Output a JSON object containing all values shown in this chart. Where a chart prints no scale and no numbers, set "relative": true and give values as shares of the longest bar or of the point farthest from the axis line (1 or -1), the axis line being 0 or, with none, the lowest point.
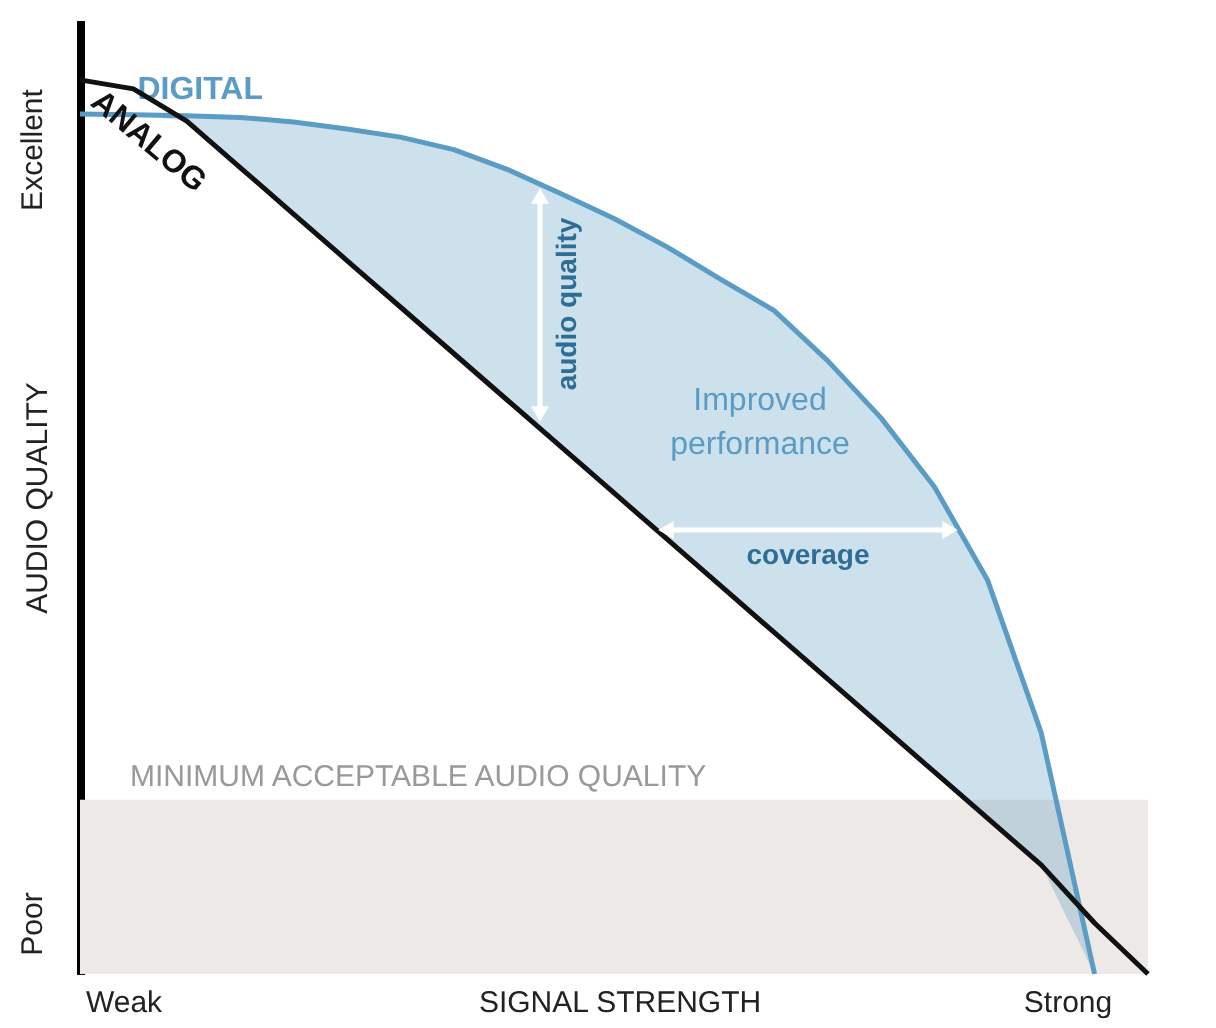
{
  "chart_data": {
    "type": "line",
    "relative": true,
    "xlabel": "SIGNAL STRENGTH",
    "ylabel": "AUDIO QUALITY",
    "categories": [
      null,
      null,
      null,
      null,
      null,
      null,
      null,
      null,
      null,
      null,
      null,
      null,
      null,
      null,
      null,
      null,
      null,
      null,
      null,
      null,
      null
    ],
    "series": [
      {
        "name": "DIGITAL",
        "color": "#5b9cc4",
        "values": [
          0.962,
          0.961,
          0.96,
          0.958,
          0.953,
          0.945,
          0.936,
          0.922,
          0.9,
          0.873,
          0.845,
          0.813,
          0.777,
          0.742,
          0.686,
          0.622,
          0.545,
          0.44,
          0.27,
          0,
          null
        ],
        "lower": [
          0.962,
          0.961,
          0.954,
          0.902,
          0.85,
          0.798,
          0.746,
          0.694,
          0.642,
          0.59,
          0.538,
          0.486,
          0.434,
          0.382,
          0.33,
          0.278,
          0.226,
          0.174,
          0.122,
          0,
          null
        ],
        "upper": [
          0.962,
          0.961,
          0.96,
          0.958,
          0.953,
          0.945,
          0.936,
          0.922,
          0.9,
          0.873,
          0.845,
          0.813,
          0.777,
          0.742,
          0.686,
          0.622,
          0.545,
          0.44,
          0.27,
          0,
          null
        ]
      },
      {
        "name": "ANALOG",
        "color": "#111111",
        "values": [
          1.0,
          0.99,
          0.954,
          0.902,
          0.85,
          0.798,
          0.746,
          0.694,
          0.642,
          0.59,
          0.538,
          0.486,
          0.434,
          0.382,
          0.33,
          0.278,
          0.226,
          0.174,
          0.122,
          0.057,
          0
        ]
      }
    ],
    "bands": [
      {
        "axis": "y",
        "from": 0,
        "to": 0.195,
        "label": "MINIMUM ACCEPTABLE AUDIO QUALITY",
        "color": "#ece9e6"
      }
    ],
    "annotations": [
      "Excellent",
      "Poor",
      "Weak",
      "Strong",
      "Improved performance",
      "audio quality",
      "coverage"
    ]
  }
}
